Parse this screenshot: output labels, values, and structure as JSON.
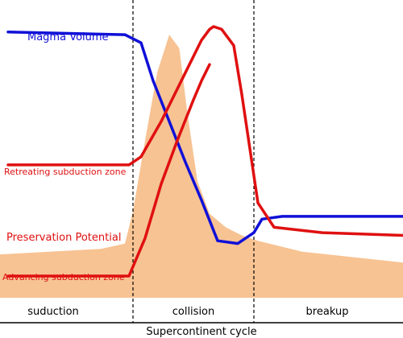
{
  "chart_data": {
    "type": "line",
    "xlabel": "Supercontinent cycle",
    "ylabel": "",
    "xlim": [
      0,
      10
    ],
    "ylim": [
      0,
      10
    ],
    "grid": false,
    "phases": [
      {
        "name": "suduction",
        "range": [
          0,
          3.3
        ]
      },
      {
        "name": "collision",
        "range": [
          3.3,
          6.3
        ]
      },
      {
        "name": "breakup",
        "range": [
          6.3,
          10
        ]
      }
    ],
    "phase_boundaries": [
      3.3,
      6.3
    ],
    "series": [
      {
        "name": "Magma Volume",
        "color": "#1010d8",
        "x": [
          0.2,
          3.1,
          3.5,
          3.8,
          4.2,
          4.6,
          5.0,
          5.4,
          5.9,
          6.3,
          6.5,
          7.0,
          10.0
        ],
        "y": [
          9.8,
          9.7,
          9.4,
          8.0,
          6.5,
          5.0,
          3.6,
          2.1,
          2.0,
          2.4,
          2.9,
          3.0,
          3.0
        ]
      },
      {
        "name": "Retreating subduction zone",
        "color": "#e01010",
        "x": [
          0.2,
          3.2,
          3.5,
          4.0,
          4.6,
          5.0,
          5.2,
          5.3,
          5.5,
          5.8,
          6.0,
          6.2,
          6.4,
          6.8,
          8.0,
          10.0
        ],
        "y": [
          4.9,
          4.9,
          5.2,
          6.5,
          8.3,
          9.5,
          9.9,
          10.0,
          9.9,
          9.3,
          7.5,
          5.5,
          3.5,
          2.6,
          2.4,
          2.3
        ]
      },
      {
        "name": "Advancing subduction zone",
        "color": "#e01010",
        "x": [
          0.2,
          3.2,
          3.6,
          4.0,
          4.4,
          4.8,
          5.0,
          5.2
        ],
        "y": [
          0.8,
          0.8,
          2.2,
          4.2,
          5.8,
          7.3,
          8.0,
          8.6
        ]
      },
      {
        "name": "Preservation Potential",
        "color": "#f7c393",
        "fill": true,
        "x": [
          0,
          2.5,
          3.1,
          3.3,
          3.6,
          3.9,
          4.2,
          4.45,
          4.65,
          4.9,
          5.2,
          5.6,
          6.0,
          6.4,
          7.5,
          10.0
        ],
        "y": [
          1.6,
          1.8,
          2.0,
          3.2,
          5.8,
          8.3,
          9.7,
          9.2,
          6.8,
          4.3,
          3.1,
          2.6,
          2.3,
          2.1,
          1.7,
          1.3
        ]
      }
    ]
  },
  "labels": {
    "magma": "Magma Volume",
    "retreating": "Retreating subduction zone",
    "preservation": "Preservation Potential",
    "advancing": "Advancing subduction zone"
  },
  "colors": {
    "magma": "#1010d8",
    "subduction": "#e01010",
    "preservation_fill": "#f7c393"
  }
}
